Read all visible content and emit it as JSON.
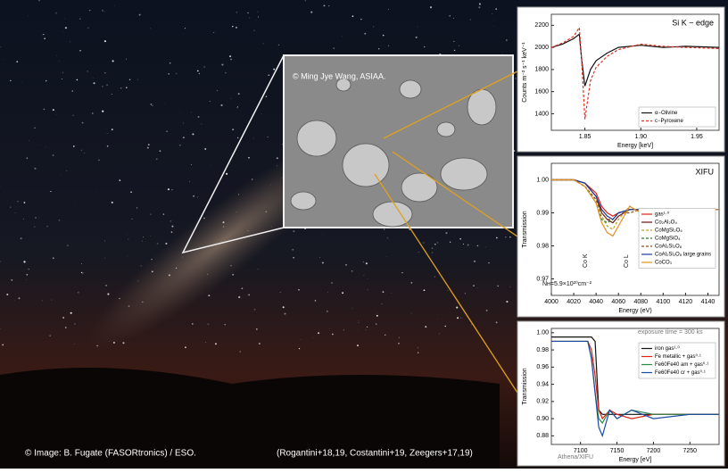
{
  "photo": {
    "credit": "© Image: B. Fugate (FASORtronics) / ESO.",
    "references": "(Rogantini+18,19, Costantini+19, Zeegers+17,19)"
  },
  "inset": {
    "credit": "© Ming Jye Wang, ASIAA."
  },
  "charts": [
    {
      "type": "line",
      "title": "Si K − edge",
      "x_label": "Energy  [keV]",
      "y_label": "Counts m⁻² s⁻¹ keV⁻¹",
      "legend": "lower right",
      "xlim": [
        1.82,
        1.97
      ],
      "xticks": [
        1.85,
        {
          "value": 1.9,
          "label": "1.90"
        },
        1.95
      ],
      "ylim": [
        1250,
        2300
      ],
      "yticks": [
        1400,
        1600,
        1800,
        2000,
        2200
      ],
      "x": [
        1.82,
        1.83,
        1.84,
        1.845,
        1.847,
        1.85,
        1.855,
        1.86,
        1.87,
        1.88,
        1.9,
        1.92,
        1.94,
        1.97
      ],
      "series": [
        {
          "name": "α−Olivine",
          "color": "#111111",
          "dash": false,
          "values": [
            2000,
            2030,
            2080,
            2120,
            1900,
            1650,
            1800,
            1880,
            1950,
            2000,
            2020,
            2000,
            2010,
            2000
          ]
        },
        {
          "name": "c−Pyroxene",
          "color": "#e03020",
          "dash": true,
          "values": [
            2000,
            2040,
            2100,
            2180,
            1900,
            1350,
            1700,
            1820,
            1920,
            1980,
            2030,
            2010,
            2000,
            1990
          ]
        }
      ]
    },
    {
      "type": "line",
      "title": "XIFU",
      "x_label": "Energy (eV)",
      "y_label": "Transmission",
      "legend": "center right",
      "annotations": [
        "Co K",
        "Co L",
        "Nʜ=5.9×10²⁰cm⁻²"
      ],
      "xlim": [
        4000,
        4150
      ],
      "xticks": [
        4000,
        4020,
        4040,
        4060,
        4080,
        4100,
        4120,
        4140
      ],
      "ylim": [
        0.965,
        1.005
      ],
      "yticks": [
        0.97,
        0.98,
        0.99,
        {
          "value": 1,
          "label": "1.00"
        }
      ],
      "x": [
        4000,
        4020,
        4030,
        4040,
        4045,
        4050,
        4055,
        4060,
        4070,
        4080,
        4100,
        4120,
        4150
      ],
      "series": [
        {
          "name": "gas¹·⁰",
          "color": "#e02010",
          "dash": false,
          "values": [
            1.0,
            1.0,
            0.999,
            0.996,
            0.992,
            0.99,
            0.989,
            0.99,
            0.991,
            0.991,
            0.991,
            0.991,
            0.991
          ]
        },
        {
          "name": "Co₂Al₂O₄",
          "color": "#6a1010",
          "dash": false,
          "values": [
            1.0,
            1.0,
            0.999,
            0.995,
            0.99,
            0.988,
            0.987,
            0.989,
            0.991,
            0.991,
            0.991,
            0.991,
            0.991
          ]
        },
        {
          "name": "CoMgSi₂O₆",
          "color": "#c0a020",
          "dash": true,
          "values": [
            1.0,
            1.0,
            0.998,
            0.994,
            0.989,
            0.986,
            0.985,
            0.988,
            0.992,
            0.99,
            0.991,
            0.991,
            0.991
          ]
        },
        {
          "name": "CoMgSiO₄",
          "color": "#2a7a2a",
          "dash": true,
          "values": [
            1.0,
            1.0,
            0.998,
            0.993,
            0.988,
            0.987,
            0.988,
            0.99,
            0.991,
            0.991,
            0.991,
            0.991,
            0.991
          ]
        },
        {
          "name": "CoAl₂Si₂O₈",
          "color": "#8a4a10",
          "dash": true,
          "values": [
            1.0,
            1.0,
            0.998,
            0.994,
            0.99,
            0.988,
            0.988,
            0.99,
            0.99,
            0.991,
            0.991,
            0.991,
            0.991
          ]
        },
        {
          "name": "CoAl₂Si₂O₈ large grains",
          "color": "#1a3aa0",
          "dash": false,
          "values": [
            1.0,
            1.0,
            0.999,
            0.995,
            0.991,
            0.989,
            0.988,
            0.99,
            0.991,
            0.991,
            0.991,
            0.991,
            0.991
          ]
        },
        {
          "name": "CoCO₃",
          "color": "#e09020",
          "dash": false,
          "values": [
            1.0,
            1.0,
            0.998,
            0.993,
            0.987,
            0.984,
            0.983,
            0.986,
            0.992,
            0.99,
            0.991,
            0.991,
            0.991
          ]
        }
      ]
    },
    {
      "type": "line",
      "x_label": "Energy  [eV]",
      "y_label": "Transmission",
      "legend": "upper right",
      "annotations": [
        "exposure time = 300 ks",
        "Athena/XIFU"
      ],
      "xlim": [
        7060,
        7290
      ],
      "xticks": [
        7100,
        7150,
        7200,
        7250
      ],
      "ylim": [
        0.87,
        1.005
      ],
      "yticks": [
        0.88,
        {
          "value": 0.9,
          "label": "0.90"
        },
        0.92,
        0.94,
        0.96,
        0.98,
        {
          "value": 1,
          "label": "1.00"
        }
      ],
      "x": [
        7060,
        7080,
        7100,
        7110,
        7115,
        7120,
        7125,
        7130,
        7140,
        7150,
        7170,
        7200,
        7250,
        7290
      ],
      "series": [
        {
          "name": "iron gas¹·⁰",
          "color": "#111111",
          "dash": false,
          "values": [
            0.995,
            0.995,
            0.995,
            0.995,
            0.995,
            0.99,
            0.91,
            0.905,
            0.905,
            0.905,
            0.905,
            0.905,
            0.905,
            0.905
          ]
        },
        {
          "name": "Fe metallic + gas⁰·¹",
          "color": "#e02010",
          "dash": false,
          "values": [
            0.99,
            0.99,
            0.99,
            0.99,
            0.98,
            0.95,
            0.91,
            0.9,
            0.91,
            0.905,
            0.9,
            0.905,
            0.905,
            0.905
          ]
        },
        {
          "name": "Fe60Fe40 am + gas⁰·¹",
          "color": "#2a8a4a",
          "dash": false,
          "values": [
            0.99,
            0.99,
            0.99,
            0.99,
            0.97,
            0.93,
            0.9,
            0.895,
            0.91,
            0.9,
            0.91,
            0.905,
            0.905,
            0.905
          ]
        },
        {
          "name": "Fe60Fe40 cr + gas⁰·¹",
          "color": "#1a4aa0",
          "dash": false,
          "values": [
            0.99,
            0.99,
            0.99,
            0.99,
            0.97,
            0.93,
            0.89,
            0.88,
            0.91,
            0.9,
            0.91,
            0.9,
            0.905,
            0.905
          ]
        }
      ]
    }
  ]
}
